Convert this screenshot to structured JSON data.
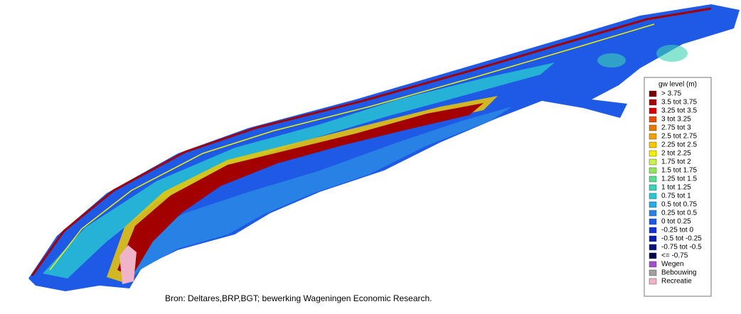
{
  "legend": {
    "title": "gw level (m)",
    "items": [
      {
        "label": "> 3.75",
        "color": "#7a0000"
      },
      {
        "label": "3.5 tot 3.75",
        "color": "#a30000"
      },
      {
        "label": "3.25 tot 3.5",
        "color": "#d40000"
      },
      {
        "label": "3 tot 3.25",
        "color": "#e84a00"
      },
      {
        "label": "2.75 tot 3",
        "color": "#e87800"
      },
      {
        "label": "2.5 tot 2.75",
        "color": "#f0a000"
      },
      {
        "label": "2.25 tot 2.5",
        "color": "#f5c800"
      },
      {
        "label": "2 tot 2.25",
        "color": "#f0f000"
      },
      {
        "label": "1.75 tot 2",
        "color": "#c8f050"
      },
      {
        "label": "1.5 tot 1.75",
        "color": "#8ee65a"
      },
      {
        "label": "1.25 tot 1.5",
        "color": "#5adc8c"
      },
      {
        "label": "1 tot 1.25",
        "color": "#3cd2b4"
      },
      {
        "label": "0.75 tot 1",
        "color": "#28c8d2"
      },
      {
        "label": "0.5 tot 0.75",
        "color": "#28aae6"
      },
      {
        "label": "0.25 tot 0.5",
        "color": "#2882e6"
      },
      {
        "label": "0 tot 0.25",
        "color": "#1e5ae6"
      },
      {
        "label": "-0.25 tot 0",
        "color": "#1432d2"
      },
      {
        "label": "-0.5 tot -0.25",
        "color": "#0a1eaa"
      },
      {
        "label": "-0.75 tot -0.5",
        "color": "#0a1478"
      },
      {
        "label": "<= -0.75",
        "color": "#000050"
      },
      {
        "label": "Wegen",
        "color": "#a050c8"
      },
      {
        "label": "Bebouwing",
        "color": "#a0a0a0"
      },
      {
        "label": "Recreatie",
        "color": "#f0b4c8"
      }
    ]
  },
  "source": "Bron: Deltares,BRP,BGT; bewerking Wageningen Economic Research."
}
